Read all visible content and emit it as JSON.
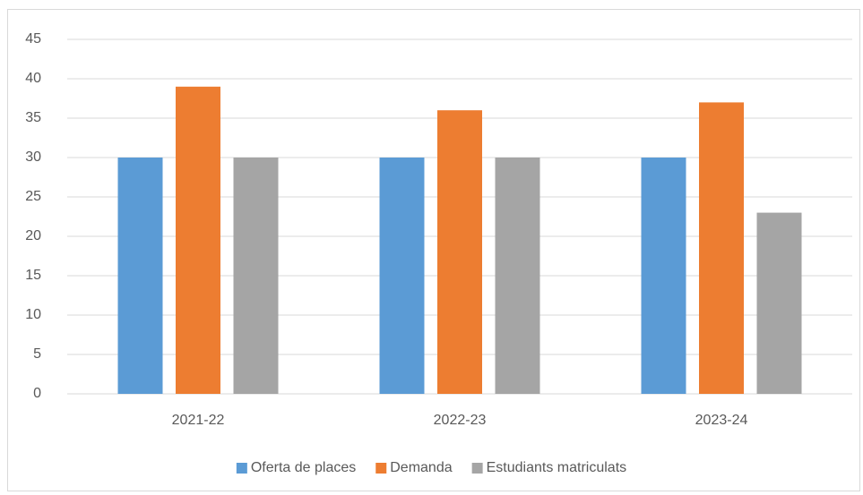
{
  "chart_data": {
    "type": "bar",
    "categories": [
      "2021-22",
      "2022-23",
      "2023-24"
    ],
    "series": [
      {
        "name": "Oferta de places",
        "color": "#5b9bd5",
        "values": [
          30,
          30,
          30
        ]
      },
      {
        "name": "Demanda",
        "color": "#ed7d31",
        "values": [
          39,
          36,
          37
        ]
      },
      {
        "name": "Estudiants matriculats",
        "color": "#a5a5a5",
        "values": [
          30,
          30,
          23
        ]
      }
    ],
    "ylim": [
      0,
      45
    ],
    "yticks": [
      0,
      5,
      10,
      15,
      20,
      25,
      30,
      35,
      40,
      45
    ],
    "grid": true,
    "legend": "bottom"
  }
}
